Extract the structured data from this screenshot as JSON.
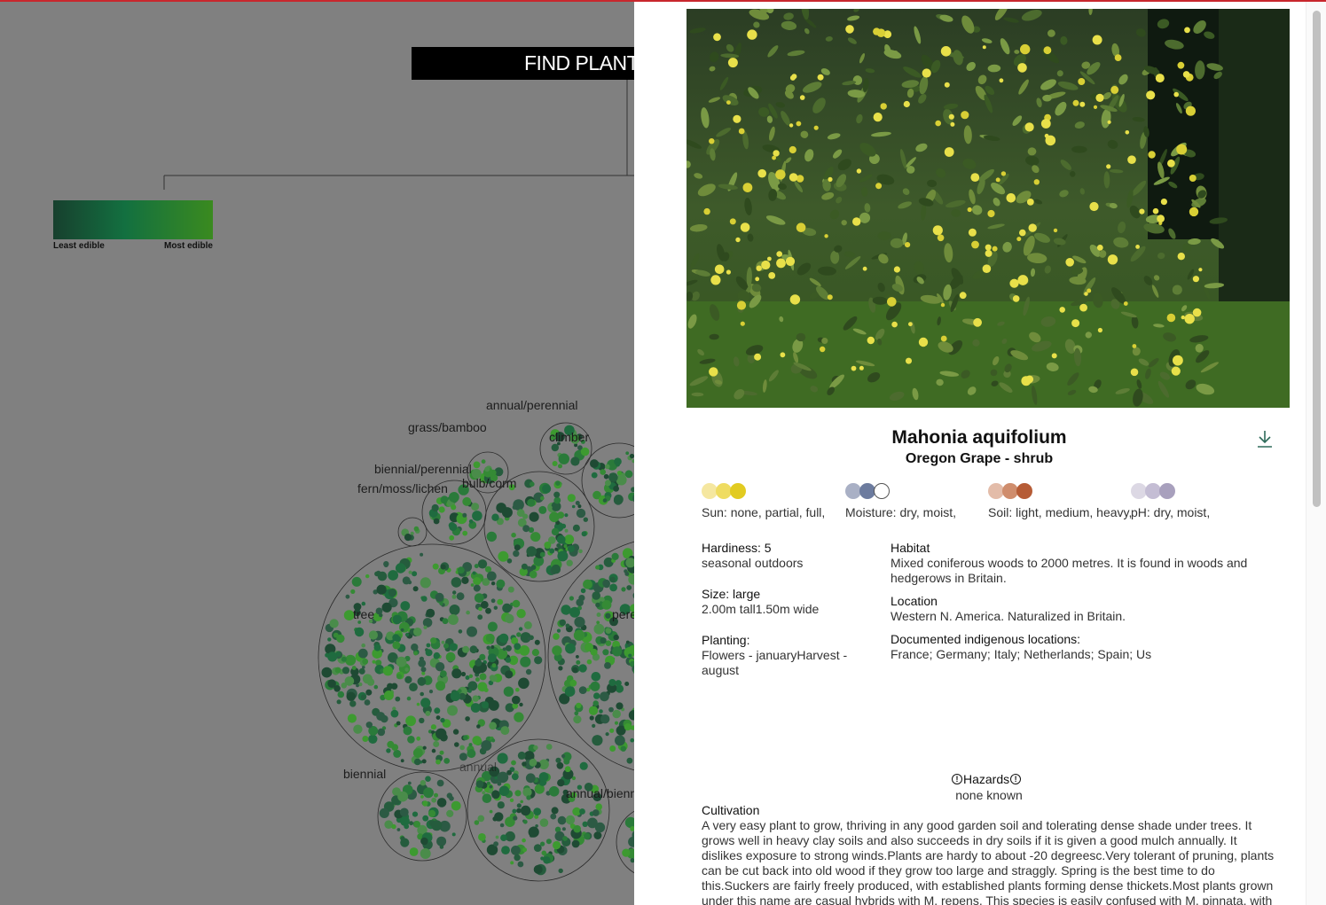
{
  "search": {
    "find_label": "FIND PLANT"
  },
  "legend": {
    "least": "Least edible",
    "most": "Most edible"
  },
  "viz_labels": [
    {
      "key": "annual-perennial",
      "text": "annual/perennial"
    },
    {
      "key": "grass-bamboo",
      "text": "grass/bamboo"
    },
    {
      "key": "climber",
      "text": "climber"
    },
    {
      "key": "biennial-perennial",
      "text": "biennial/perennial"
    },
    {
      "key": "bulb-corm",
      "text": "bulb/corm"
    },
    {
      "key": "fern-moss-lichen",
      "text": "fern/moss/lichen"
    },
    {
      "key": "tree",
      "text": "tree"
    },
    {
      "key": "perennial",
      "text": "pere"
    },
    {
      "key": "biennial",
      "text": "biennial"
    },
    {
      "key": "annual",
      "text": "annual"
    },
    {
      "key": "annual-biennial",
      "text": "annual/bienn"
    }
  ],
  "plant": {
    "scientific_name": "Mahonia aquifolium",
    "common_name": "Oregon Grape - shrub",
    "conditions": [
      {
        "key": "sun",
        "text": "Sun: none, partial, full,",
        "colors": [
          "#f5e7a0",
          "#efdc61",
          "#e2cb21"
        ]
      },
      {
        "key": "moisture",
        "text": "Moisture: dry, moist,",
        "colors": [
          "#a9b0c5",
          "#6c7b9e",
          "#ffffff"
        ]
      },
      {
        "key": "soil",
        "text": "Soil: light, medium, heavy,",
        "colors": [
          "#e3bca9",
          "#cf8d6d",
          "#b65c36"
        ]
      },
      {
        "key": "ph",
        "text": "pH: dry, moist,",
        "colors": [
          "#dcd8e4",
          "#c4bdd4",
          "#a8a0bd"
        ]
      }
    ],
    "hardiness": {
      "label": "Hardiness: 5",
      "value": "seasonal outdoors"
    },
    "size": {
      "label": "Size: large",
      "value": "2.00m tall1.50m wide"
    },
    "planting": {
      "label": "Planting:",
      "value": "Flowers - januaryHarvest - august"
    },
    "habitat": {
      "label": "Habitat",
      "value": "Mixed coniferous woods to 2000 metres. It is found in woods and hedgerows in Britain."
    },
    "location": {
      "label": "Location",
      "value": "Western N. America. Naturalized in Britain."
    },
    "indigenous": {
      "label": "Documented indigenous locations:",
      "value": "France; Germany; Italy; Netherlands; Spain; Us"
    },
    "hazards": {
      "label": "Hazards",
      "value": "none known"
    },
    "cultivation": {
      "label": "Cultivation",
      "value": "A very easy plant to grow, thriving in any good garden soil and tolerating dense shade under trees. It grows well in heavy clay soils and also succeeds in dry soils if it is given a good mulch annually. It dislikes exposure to strong winds.Plants are hardy to about -20 degreesc.Very tolerant of pruning, plants can be cut back into old wood if they grow too large and straggly. Spring is the best time to do this.Suckers are fairly freely produced, with established plants forming dense thickets.Most plants grown under this name are casual hybrids with M. repens. This species is easily confused with M. pinnata, with which it also"
    }
  },
  "colors": {
    "accent": "#c8272d",
    "overlay": "#808080",
    "leaf_dark": "#1f5a3a",
    "leaf_light": "#3fa53a"
  }
}
